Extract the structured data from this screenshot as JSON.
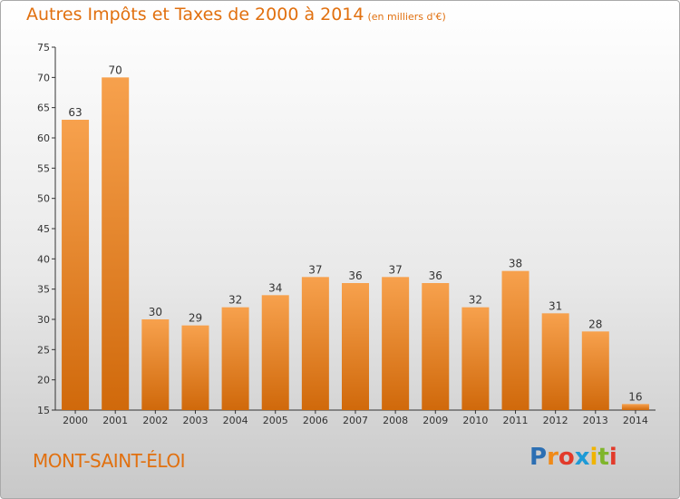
{
  "title": "Autres Impôts et Taxes de 2000 à 2014",
  "unit": "(en milliers d'€)",
  "place": "MONT-SAINT-ÉLOI",
  "logo": {
    "text": "Proxiti",
    "colors": [
      "#2c6fb3",
      "#f08a18",
      "#e23a2a",
      "#1d9ad6",
      "#f0b400",
      "#7fb52b",
      "#e23a2a"
    ]
  },
  "colors": {
    "title": "#e1700f",
    "bar_top": "#f7a14d",
    "bar_bottom": "#d0690b"
  },
  "chart_data": {
    "type": "bar",
    "title": "Autres Impôts et Taxes de 2000 à 2014",
    "xlabel": "",
    "ylabel": "",
    "categories": [
      "2000",
      "2001",
      "2002",
      "2003",
      "2004",
      "2005",
      "2006",
      "2007",
      "2008",
      "2009",
      "2010",
      "2011",
      "2012",
      "2013",
      "2014"
    ],
    "values": [
      63,
      70,
      30,
      29,
      32,
      34,
      37,
      36,
      37,
      36,
      32,
      38,
      31,
      28,
      16
    ],
    "ylim": [
      15,
      75
    ],
    "yticks": [
      15,
      20,
      25,
      30,
      35,
      40,
      45,
      50,
      55,
      60,
      65,
      70,
      75
    ],
    "grid": false,
    "legend": "none"
  }
}
